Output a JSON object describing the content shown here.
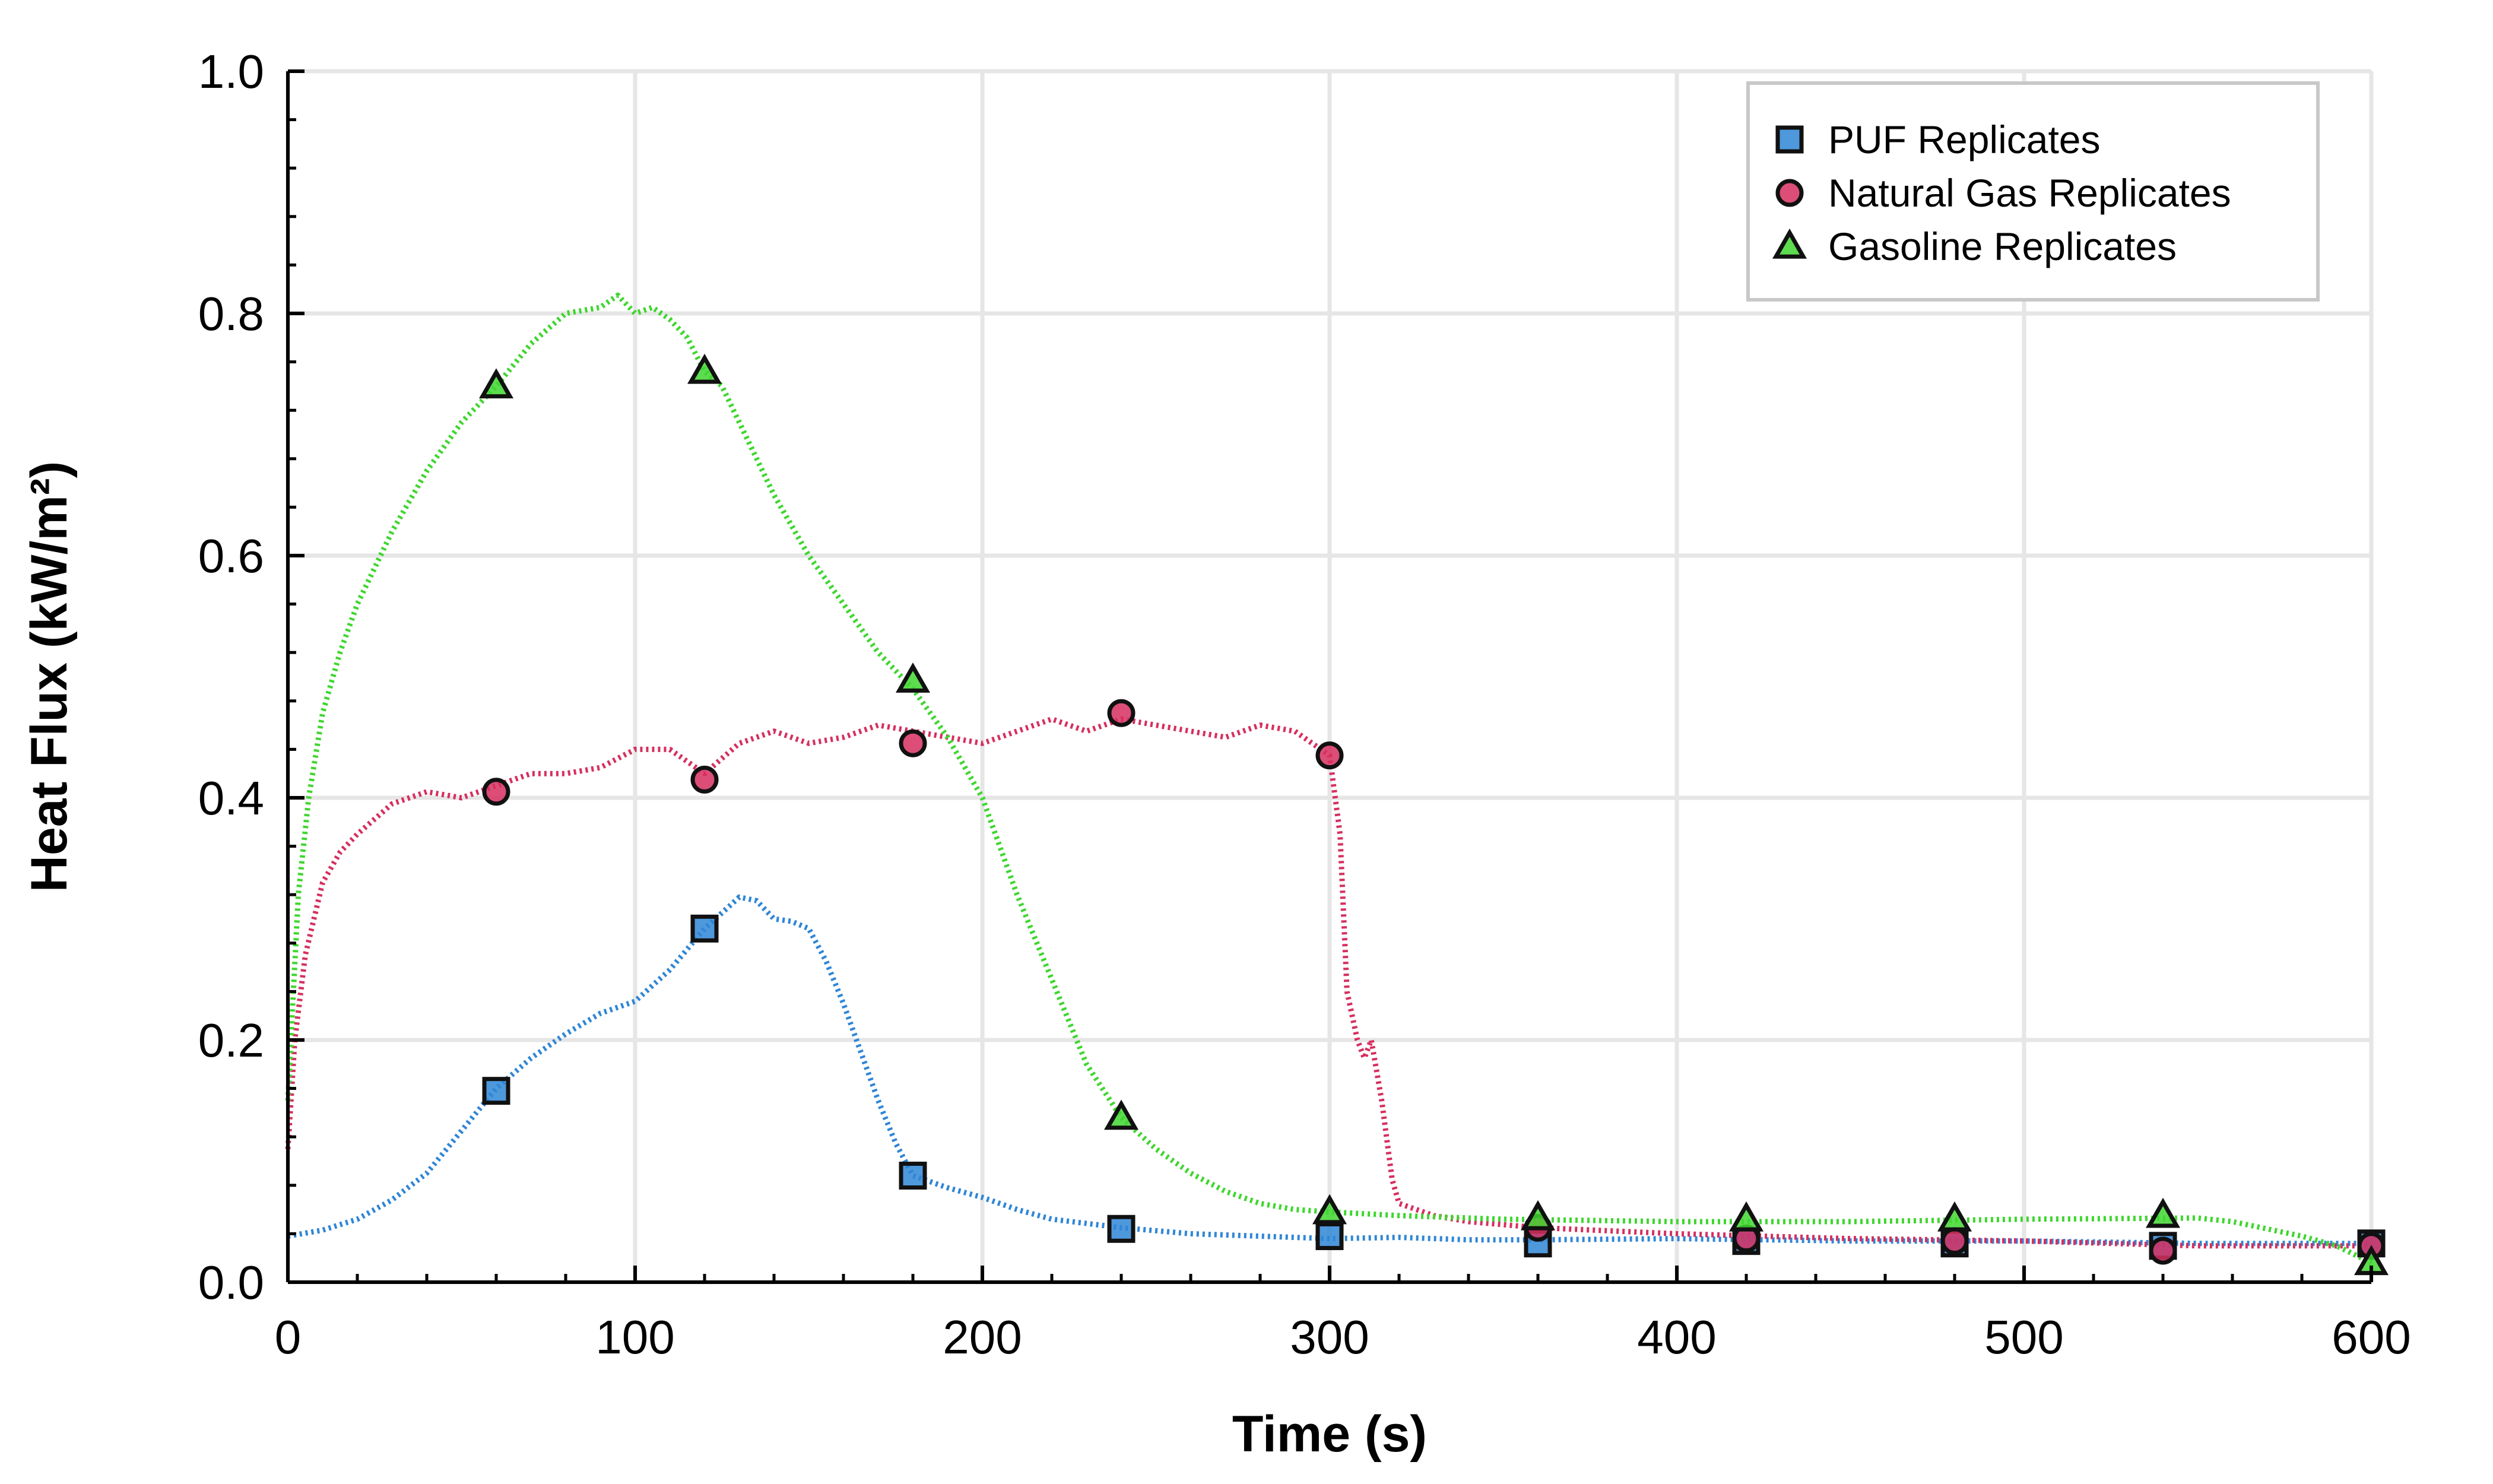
{
  "chart_data": {
    "type": "scatter",
    "title": "",
    "xlabel": "Time (s)",
    "ylabel": "Heat Flux (kW/m²)",
    "xlim": [
      0,
      600
    ],
    "ylim": [
      0,
      1.0
    ],
    "x_ticks": [
      "0",
      "100",
      "200",
      "300",
      "400",
      "500",
      "600"
    ],
    "y_ticks": [
      "0.0",
      "0.2",
      "0.4",
      "0.6",
      "0.8",
      "1.0"
    ],
    "grid": true,
    "legend": "top-right",
    "series": [
      {
        "name": "PUF Replicates",
        "color": "#2f86d6",
        "marker": "square",
        "markers": [
          [
            60,
            0.158
          ],
          [
            120,
            0.292
          ],
          [
            180,
            0.088
          ],
          [
            240,
            0.044
          ],
          [
            300,
            0.038
          ],
          [
            360,
            0.032
          ],
          [
            420,
            0.034
          ],
          [
            480,
            0.032
          ],
          [
            540,
            0.03
          ],
          [
            600,
            0.032
          ]
        ],
        "x": [
          0,
          10,
          20,
          30,
          40,
          50,
          60,
          70,
          80,
          90,
          100,
          110,
          120,
          125,
          130,
          135,
          140,
          145,
          150,
          155,
          160,
          165,
          170,
          175,
          180,
          190,
          200,
          210,
          220,
          240,
          260,
          280,
          300,
          320,
          340,
          360,
          400,
          450,
          500,
          550,
          600
        ],
        "y": [
          0.038,
          0.043,
          0.052,
          0.068,
          0.09,
          0.125,
          0.16,
          0.185,
          0.205,
          0.222,
          0.232,
          0.258,
          0.292,
          0.305,
          0.318,
          0.315,
          0.3,
          0.298,
          0.292,
          0.265,
          0.23,
          0.19,
          0.15,
          0.115,
          0.088,
          0.078,
          0.07,
          0.06,
          0.052,
          0.045,
          0.04,
          0.038,
          0.036,
          0.037,
          0.035,
          0.035,
          0.036,
          0.034,
          0.034,
          0.032,
          0.032
        ]
      },
      {
        "name": "Natural Gas Replicates",
        "color": "#d62f5f",
        "marker": "circle",
        "markers": [
          [
            60,
            0.405
          ],
          [
            120,
            0.415
          ],
          [
            180,
            0.445
          ],
          [
            240,
            0.47
          ],
          [
            300,
            0.435
          ],
          [
            360,
            0.045
          ],
          [
            420,
            0.036
          ],
          [
            480,
            0.034
          ],
          [
            540,
            0.026
          ],
          [
            600,
            0.03
          ]
        ],
        "x": [
          0,
          2,
          5,
          10,
          15,
          20,
          30,
          40,
          50,
          60,
          70,
          80,
          90,
          100,
          110,
          120,
          130,
          140,
          150,
          160,
          170,
          180,
          190,
          200,
          210,
          220,
          230,
          240,
          250,
          260,
          270,
          280,
          290,
          300,
          303,
          305,
          308,
          310,
          312,
          315,
          318,
          320,
          325,
          330,
          340,
          360,
          400,
          450,
          500,
          550,
          600
        ],
        "y": [
          0.11,
          0.2,
          0.27,
          0.33,
          0.355,
          0.37,
          0.395,
          0.405,
          0.4,
          0.41,
          0.42,
          0.42,
          0.425,
          0.44,
          0.44,
          0.42,
          0.445,
          0.455,
          0.445,
          0.45,
          0.46,
          0.455,
          0.45,
          0.445,
          0.455,
          0.465,
          0.455,
          0.465,
          0.46,
          0.455,
          0.45,
          0.46,
          0.455,
          0.435,
          0.37,
          0.24,
          0.2,
          0.185,
          0.2,
          0.15,
          0.085,
          0.065,
          0.06,
          0.055,
          0.05,
          0.045,
          0.04,
          0.036,
          0.034,
          0.03,
          0.03
        ]
      },
      {
        "name": "Gasoline Replicates",
        "color": "#3fd62f",
        "marker": "triangle",
        "markers": [
          [
            60,
            0.74
          ],
          [
            120,
            0.752
          ],
          [
            180,
            0.497
          ],
          [
            240,
            0.136
          ],
          [
            300,
            0.058
          ],
          [
            360,
            0.053
          ],
          [
            420,
            0.052
          ],
          [
            480,
            0.052
          ],
          [
            540,
            0.055
          ],
          [
            600,
            0.016
          ]
        ],
        "x": [
          0,
          3,
          6,
          10,
          15,
          20,
          25,
          30,
          40,
          50,
          60,
          70,
          80,
          90,
          95,
          100,
          105,
          110,
          115,
          120,
          125,
          130,
          140,
          150,
          160,
          170,
          180,
          190,
          200,
          210,
          220,
          230,
          240,
          250,
          260,
          270,
          280,
          290,
          300,
          320,
          350,
          400,
          450,
          500,
          550,
          560,
          570,
          580,
          590,
          600
        ],
        "y": [
          0.15,
          0.32,
          0.4,
          0.47,
          0.52,
          0.56,
          0.59,
          0.62,
          0.67,
          0.71,
          0.74,
          0.775,
          0.8,
          0.805,
          0.815,
          0.8,
          0.805,
          0.795,
          0.78,
          0.752,
          0.74,
          0.71,
          0.65,
          0.6,
          0.56,
          0.52,
          0.49,
          0.45,
          0.4,
          0.32,
          0.25,
          0.18,
          0.136,
          0.11,
          0.09,
          0.075,
          0.065,
          0.06,
          0.058,
          0.055,
          0.052,
          0.05,
          0.05,
          0.052,
          0.053,
          0.05,
          0.044,
          0.038,
          0.03,
          0.016
        ]
      }
    ]
  }
}
